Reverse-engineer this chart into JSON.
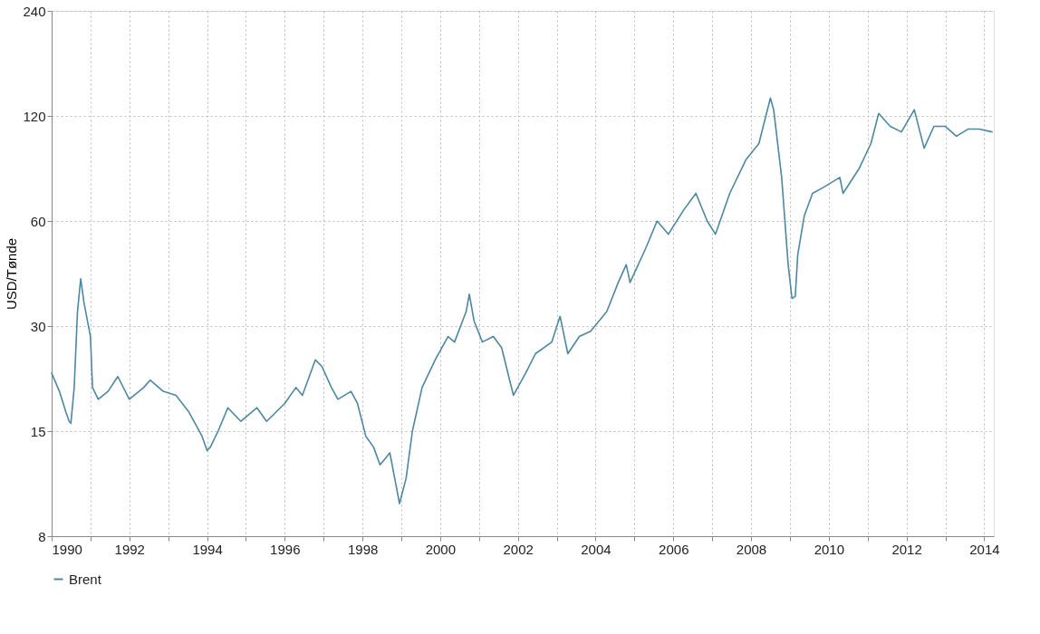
{
  "chart_data": {
    "type": "line",
    "ylabel": "USD/Tønde",
    "log": "y",
    "grid": true,
    "legend": "bottom",
    "line_style": "solid",
    "marker": "none",
    "xlim": [
      "1990-01-01",
      "2014-04-01"
    ],
    "xticks": [
      {
        "value": "1990-01-01",
        "label": "1990"
      },
      {
        "value": "1991-01-01",
        "label": null
      },
      {
        "value": "1992-01-01",
        "label": "1992"
      },
      {
        "value": "1993-01-01",
        "label": null
      },
      {
        "value": "1994-01-01",
        "label": "1994"
      },
      {
        "value": "1995-01-01",
        "label": null
      },
      {
        "value": "1996-01-01",
        "label": "1996"
      },
      {
        "value": "1997-01-01",
        "label": null
      },
      {
        "value": "1998-01-01",
        "label": "1998"
      },
      {
        "value": "1999-01-01",
        "label": null
      },
      {
        "value": "2000-01-01",
        "label": "2000"
      },
      {
        "value": "2001-01-01",
        "label": null
      },
      {
        "value": "2002-01-01",
        "label": "2002"
      },
      {
        "value": "2003-01-01",
        "label": null
      },
      {
        "value": "2004-01-01",
        "label": "2004"
      },
      {
        "value": "2005-01-01",
        "label": null
      },
      {
        "value": "2006-01-01",
        "label": "2006"
      },
      {
        "value": "2007-01-01",
        "label": null
      },
      {
        "value": "2008-01-01",
        "label": "2008"
      },
      {
        "value": "2009-01-01",
        "label": null
      },
      {
        "value": "2010-01-01",
        "label": "2010"
      },
      {
        "value": "2011-01-01",
        "label": null
      },
      {
        "value": "2012-01-01",
        "label": "2012"
      },
      {
        "value": "2013-01-01",
        "label": null
      },
      {
        "value": "2014-01-01",
        "label": "2014"
      }
    ],
    "ylim": [
      7.5,
      240
    ],
    "yticks": [
      {
        "value": 7.5,
        "label": "8"
      },
      15,
      30,
      60,
      120,
      240
    ],
    "x": [
      "1990-01-01",
      "1990-03-15",
      "1990-05-15",
      "1990-06-15",
      "1990-07-01",
      "1990-08-01",
      "1990-09-01",
      "1990-10-01",
      "1990-11-01",
      "1991-01-01",
      "1991-01-20",
      "1991-03-15",
      "1991-06-15",
      "1991-09-15",
      "1992-01-01",
      "1992-05-15",
      "1992-07-15",
      "1992-11-15",
      "1993-03-15",
      "1993-07-15",
      "1993-11-15",
      "1994-01-01",
      "1994-02-01",
      "1994-04-15",
      "1994-07-15",
      "1994-11-15",
      "1995-04-15",
      "1995-07-15",
      "1996-01-01",
      "1996-04-15",
      "1996-06-15",
      "1996-10-15",
      "1996-12-15",
      "1997-03-15",
      "1997-05-15",
      "1997-09-15",
      "1997-11-15",
      "1998-02-01",
      "1998-04-15",
      "1998-06-15",
      "1998-09-15",
      "1998-12-15",
      "1999-02-15",
      "1999-04-15",
      "1999-07-15",
      "1999-11-15",
      "2000-03-15",
      "2000-05-15",
      "2000-09-01",
      "2000-10-01",
      "2000-11-15",
      "2001-02-01",
      "2001-05-15",
      "2001-08-01",
      "2001-10-15",
      "2001-11-20",
      "2002-03-15",
      "2002-06-15",
      "2002-11-15",
      "2003-02-01",
      "2003-04-15",
      "2003-08-01",
      "2003-11-15",
      "2004-04-15",
      "2004-08-01",
      "2004-10-15",
      "2004-11-20",
      "2005-04-15",
      "2005-08-01",
      "2005-11-15",
      "2006-04-15",
      "2006-08-01",
      "2006-11-15",
      "2007-02-01",
      "2007-06-15",
      "2007-11-15",
      "2008-03-15",
      "2008-07-01",
      "2008-08-01",
      "2008-10-15",
      "2008-12-15",
      "2009-01-20",
      "2009-02-20",
      "2009-03-15",
      "2009-05-15",
      "2009-08-01",
      "2009-11-15",
      "2010-04-15",
      "2010-05-15",
      "2010-10-15",
      "2011-02-01",
      "2011-04-15",
      "2011-08-01",
      "2011-11-15",
      "2012-03-15",
      "2012-06-15",
      "2012-09-15",
      "2013-01-01",
      "2013-04-15",
      "2013-08-01",
      "2013-11-15",
      "2014-03-15"
    ],
    "series": [
      {
        "name": "Brent",
        "color": "#4d88a0",
        "values": [
          22,
          19.5,
          17,
          16,
          15.8,
          20,
          33,
          41,
          35,
          28,
          20,
          18.5,
          19.5,
          21.5,
          18.5,
          20,
          21,
          19.5,
          19,
          17,
          14.5,
          13.2,
          13.5,
          15,
          17.5,
          16,
          17.5,
          16,
          18,
          20,
          19,
          24,
          23,
          20,
          18.5,
          19.5,
          18,
          14.5,
          13.5,
          12,
          13,
          9.3,
          11,
          15,
          20,
          24,
          28,
          27,
          33,
          37,
          31,
          27,
          28,
          26,
          21,
          19,
          22,
          25,
          27,
          32,
          25,
          28,
          29,
          33,
          40,
          45,
          40,
          50,
          60,
          55,
          65,
          72,
          60,
          55,
          72,
          90,
          100,
          135,
          125,
          80,
          45,
          36,
          36.5,
          48,
          62,
          72,
          75,
          80,
          72,
          85,
          100,
          122,
          112,
          108,
          125,
          97,
          112,
          112,
          105,
          110,
          110,
          108
        ]
      }
    ]
  }
}
